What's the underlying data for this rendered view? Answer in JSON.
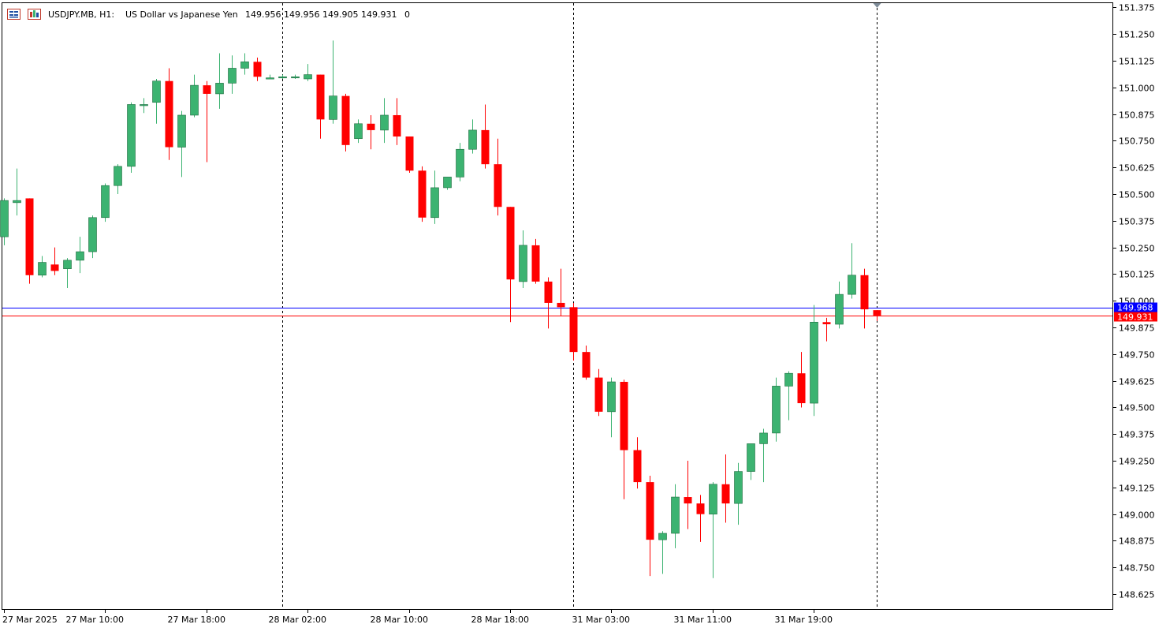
{
  "header": {
    "symbol": "USDJPY.MB, H1:",
    "description": "US Dollar vs Japanese Yen",
    "ohlc": "149.956 149.956 149.905 149.931",
    "extra": "0",
    "icons": [
      "chart-menu-icon",
      "indicator-list-icon"
    ]
  },
  "colors": {
    "bull": "#3cb371",
    "bear": "#ff0000",
    "bid_line": "#ff0000",
    "ask_line": "#0000ff",
    "frame": "#000000",
    "separator": "#000000"
  },
  "price_tags": {
    "ask": "149.968",
    "bid": "149.931"
  },
  "chart_data": {
    "type": "candlestick",
    "symbol": "USDJPY.MB",
    "timeframe": "H1",
    "ylim": [
      148.555,
      151.395
    ],
    "y_ticks": [
      "151.375",
      "151.250",
      "151.125",
      "151.000",
      "150.875",
      "150.750",
      "150.625",
      "150.500",
      "150.375",
      "150.250",
      "150.125",
      "150.000",
      "149.875",
      "149.750",
      "149.625",
      "149.500",
      "149.375",
      "149.250",
      "149.125",
      "149.000",
      "148.875",
      "148.750",
      "148.625"
    ],
    "x_tick_labels": [
      "27 Mar 2025",
      "27 Mar 10:00",
      "27 Mar 18:00",
      "28 Mar 02:00",
      "28 Mar 10:00",
      "28 Mar 18:00",
      "31 Mar 03:00",
      "31 Mar 11:00",
      "31 Mar 19:00"
    ],
    "x_tick_bar_index": [
      0,
      8,
      16,
      24,
      32,
      40,
      48,
      56,
      64
    ],
    "day_separator_bar_index": [
      22,
      45,
      69
    ],
    "ask": 149.968,
    "bid": 149.931,
    "candles": [
      {
        "o": 150.3,
        "h": 150.48,
        "l": 150.26,
        "c": 150.47
      },
      {
        "o": 150.46,
        "h": 150.62,
        "l": 150.4,
        "c": 150.47
      },
      {
        "o": 150.48,
        "h": 150.48,
        "l": 150.08,
        "c": 150.12
      },
      {
        "o": 150.12,
        "h": 150.21,
        "l": 150.11,
        "c": 150.18
      },
      {
        "o": 150.17,
        "h": 150.25,
        "l": 150.12,
        "c": 150.14
      },
      {
        "o": 150.15,
        "h": 150.2,
        "l": 150.06,
        "c": 150.19
      },
      {
        "o": 150.19,
        "h": 150.3,
        "l": 150.13,
        "c": 150.23
      },
      {
        "o": 150.23,
        "h": 150.4,
        "l": 150.2,
        "c": 150.39
      },
      {
        "o": 150.39,
        "h": 150.55,
        "l": 150.37,
        "c": 150.54
      },
      {
        "o": 150.54,
        "h": 150.64,
        "l": 150.5,
        "c": 150.63
      },
      {
        "o": 150.63,
        "h": 150.93,
        "l": 150.6,
        "c": 150.92
      },
      {
        "o": 150.92,
        "h": 150.95,
        "l": 150.88,
        "c": 150.92
      },
      {
        "o": 150.93,
        "h": 151.04,
        "l": 150.83,
        "c": 151.03
      },
      {
        "o": 151.03,
        "h": 151.09,
        "l": 150.66,
        "c": 150.72
      },
      {
        "o": 150.72,
        "h": 150.89,
        "l": 150.58,
        "c": 150.87
      },
      {
        "o": 150.87,
        "h": 151.06,
        "l": 150.86,
        "c": 151.01
      },
      {
        "o": 151.01,
        "h": 151.03,
        "l": 150.65,
        "c": 150.97
      },
      {
        "o": 150.97,
        "h": 151.16,
        "l": 150.9,
        "c": 151.02
      },
      {
        "o": 151.02,
        "h": 151.15,
        "l": 150.97,
        "c": 151.09
      },
      {
        "o": 151.09,
        "h": 151.16,
        "l": 151.06,
        "c": 151.12
      },
      {
        "o": 151.12,
        "h": 151.14,
        "l": 151.03,
        "c": 151.05
      },
      {
        "o": 151.045,
        "h": 151.06,
        "l": 151.04,
        "c": 151.045
      },
      {
        "o": 151.05,
        "h": 151.06,
        "l": 151.04,
        "c": 151.05
      },
      {
        "o": 151.05,
        "h": 151.06,
        "l": 151.04,
        "c": 151.05
      },
      {
        "o": 151.04,
        "h": 151.11,
        "l": 151.03,
        "c": 151.06
      },
      {
        "o": 151.06,
        "h": 151.06,
        "l": 150.76,
        "c": 150.85
      },
      {
        "o": 150.85,
        "h": 151.22,
        "l": 150.83,
        "c": 150.96
      },
      {
        "o": 150.96,
        "h": 150.97,
        "l": 150.7,
        "c": 150.73
      },
      {
        "o": 150.76,
        "h": 150.85,
        "l": 150.74,
        "c": 150.83
      },
      {
        "o": 150.83,
        "h": 150.87,
        "l": 150.71,
        "c": 150.8
      },
      {
        "o": 150.8,
        "h": 150.95,
        "l": 150.74,
        "c": 150.87
      },
      {
        "o": 150.87,
        "h": 150.95,
        "l": 150.73,
        "c": 150.77
      },
      {
        "o": 150.77,
        "h": 150.77,
        "l": 150.6,
        "c": 150.61
      },
      {
        "o": 150.61,
        "h": 150.63,
        "l": 150.37,
        "c": 150.39
      },
      {
        "o": 150.39,
        "h": 150.61,
        "l": 150.36,
        "c": 150.53
      },
      {
        "o": 150.53,
        "h": 150.58,
        "l": 150.52,
        "c": 150.58
      },
      {
        "o": 150.58,
        "h": 150.74,
        "l": 150.56,
        "c": 150.71
      },
      {
        "o": 150.71,
        "h": 150.85,
        "l": 150.69,
        "c": 150.8
      },
      {
        "o": 150.8,
        "h": 150.92,
        "l": 150.62,
        "c": 150.64
      },
      {
        "o": 150.64,
        "h": 150.76,
        "l": 150.4,
        "c": 150.44
      },
      {
        "o": 150.44,
        "h": 150.44,
        "l": 149.9,
        "c": 150.1
      },
      {
        "o": 150.09,
        "h": 150.33,
        "l": 150.06,
        "c": 150.26
      },
      {
        "o": 150.26,
        "h": 150.29,
        "l": 150.08,
        "c": 150.09
      },
      {
        "o": 150.09,
        "h": 150.11,
        "l": 149.87,
        "c": 149.99
      },
      {
        "o": 149.99,
        "h": 150.15,
        "l": 149.93,
        "c": 149.97
      },
      {
        "o": 149.97,
        "h": 149.99,
        "l": 149.72,
        "c": 149.76
      },
      {
        "o": 149.76,
        "h": 149.79,
        "l": 149.63,
        "c": 149.64
      },
      {
        "o": 149.64,
        "h": 149.68,
        "l": 149.46,
        "c": 149.48
      },
      {
        "o": 149.48,
        "h": 149.64,
        "l": 149.36,
        "c": 149.62
      },
      {
        "o": 149.62,
        "h": 149.63,
        "l": 149.07,
        "c": 149.3
      },
      {
        "o": 149.3,
        "h": 149.36,
        "l": 149.12,
        "c": 149.15
      },
      {
        "o": 149.15,
        "h": 149.18,
        "l": 148.71,
        "c": 148.88
      },
      {
        "o": 148.88,
        "h": 148.92,
        "l": 148.72,
        "c": 148.91
      },
      {
        "o": 148.91,
        "h": 149.14,
        "l": 148.84,
        "c": 149.08
      },
      {
        "o": 149.08,
        "h": 149.25,
        "l": 148.93,
        "c": 149.05
      },
      {
        "o": 149.05,
        "h": 149.09,
        "l": 148.87,
        "c": 149.0
      },
      {
        "o": 149.0,
        "h": 149.15,
        "l": 148.7,
        "c": 149.14
      },
      {
        "o": 149.14,
        "h": 149.28,
        "l": 148.96,
        "c": 149.05
      },
      {
        "o": 149.05,
        "h": 149.24,
        "l": 148.95,
        "c": 149.2
      },
      {
        "o": 149.2,
        "h": 149.33,
        "l": 149.16,
        "c": 149.33
      },
      {
        "o": 149.33,
        "h": 149.4,
        "l": 149.15,
        "c": 149.38
      },
      {
        "o": 149.38,
        "h": 149.64,
        "l": 149.34,
        "c": 149.6
      },
      {
        "o": 149.6,
        "h": 149.67,
        "l": 149.44,
        "c": 149.66
      },
      {
        "o": 149.66,
        "h": 149.76,
        "l": 149.5,
        "c": 149.52
      },
      {
        "o": 149.52,
        "h": 149.98,
        "l": 149.46,
        "c": 149.9
      },
      {
        "o": 149.9,
        "h": 149.92,
        "l": 149.81,
        "c": 149.89
      },
      {
        "o": 149.89,
        "h": 150.09,
        "l": 149.87,
        "c": 150.03
      },
      {
        "o": 150.03,
        "h": 150.27,
        "l": 150.01,
        "c": 150.12
      },
      {
        "o": 150.12,
        "h": 150.15,
        "l": 149.87,
        "c": 149.96
      },
      {
        "o": 149.956,
        "h": 149.956,
        "l": 149.905,
        "c": 149.931
      }
    ]
  }
}
